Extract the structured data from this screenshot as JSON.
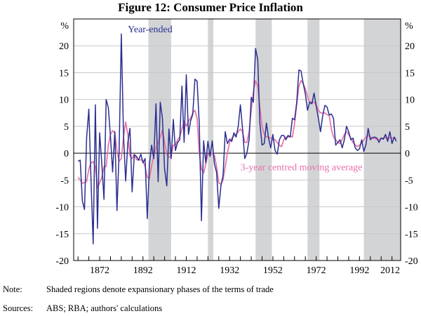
{
  "title": "Figure 12: Consumer Price Inflation",
  "note_label": "Note:",
  "note_text": "Shaded regions denote expansionary phases of the terms of trade",
  "sources_label": "Sources:",
  "sources_text": "ABS; RBA; authors' calculations",
  "chart_data": {
    "type": "line",
    "title": "Figure 12: Consumer Price Inflation",
    "xlabel": "",
    "ylabel": "%",
    "ylabel_right": "%",
    "xlim": [
      1860,
      2011
    ],
    "ylim": [
      -20,
      25
    ],
    "yticks": [
      -20,
      -15,
      -10,
      -5,
      0,
      5,
      10,
      15,
      20
    ],
    "xticks": [
      1872,
      1892,
      1912,
      1932,
      1952,
      1972,
      1992,
      2012
    ],
    "minor_xtick_step": 5,
    "grid": true,
    "shaded_regions": [
      [
        1894.5,
        1905
      ],
      [
        1922,
        1924.5
      ],
      [
        1944,
        1951.5
      ],
      [
        1968,
        1973.5
      ],
      [
        1994,
        2011
      ]
    ],
    "colors": {
      "year_ended": "#2b2f8f",
      "moving_average": "#e870a8",
      "shade": "#d3d4d6",
      "grid": "#c8c8c8"
    },
    "annotations": [
      {
        "text": "Year-ended",
        "series": "year_ended",
        "x": 1885,
        "y": 22.5
      },
      {
        "text": "3-year centred moving average",
        "series": "moving_average",
        "x": 1937,
        "y": -3.2
      }
    ],
    "x": [
      1862,
      1863,
      1864,
      1865,
      1866,
      1867,
      1868,
      1869,
      1870,
      1871,
      1872,
      1873,
      1874,
      1875,
      1876,
      1877,
      1878,
      1879,
      1880,
      1881,
      1882,
      1883,
      1884,
      1885,
      1886,
      1887,
      1888,
      1889,
      1890,
      1891,
      1892,
      1893,
      1894,
      1895,
      1896,
      1897,
      1898,
      1899,
      1900,
      1901,
      1902,
      1903,
      1904,
      1905,
      1906,
      1907,
      1908,
      1909,
      1910,
      1911,
      1912,
      1913,
      1914,
      1915,
      1916,
      1917,
      1918,
      1919,
      1920,
      1921,
      1922,
      1923,
      1924,
      1925,
      1926,
      1927,
      1928,
      1929,
      1930,
      1931,
      1932,
      1933,
      1934,
      1935,
      1936,
      1937,
      1938,
      1939,
      1940,
      1941,
      1942,
      1943,
      1944,
      1945,
      1946,
      1947,
      1948,
      1949,
      1950,
      1951,
      1952,
      1953,
      1954,
      1955,
      1956,
      1957,
      1958,
      1959,
      1960,
      1961,
      1962,
      1963,
      1964,
      1965,
      1966,
      1967,
      1968,
      1969,
      1970,
      1971,
      1972,
      1973,
      1974,
      1975,
      1976,
      1977,
      1978,
      1979,
      1980,
      1981,
      1982,
      1983,
      1984,
      1985,
      1986,
      1987,
      1988,
      1989,
      1990,
      1991,
      1992,
      1993,
      1994,
      1995,
      1996,
      1997,
      1998,
      1999,
      2000,
      2001,
      2002,
      2003,
      2004,
      2005,
      2006,
      2007,
      2008,
      2009,
      2010,
      2011
    ],
    "series": [
      {
        "name": "Year-ended",
        "values": [
          -1.5,
          -1.3,
          -8.8,
          -10.5,
          3.0,
          8.2,
          -5.0,
          -16.9,
          9.0,
          -14.0,
          3.8,
          -2.0,
          -8.6,
          10.0,
          8.5,
          3.0,
          -3.5,
          4.0,
          -10.7,
          0.5,
          22.2,
          3.5,
          -5.2,
          2.0,
          4.6,
          -7.2,
          -0.3,
          -0.6,
          -1.3,
          -0.2,
          -1.8,
          -1.0,
          -12.2,
          -2.0,
          1.5,
          -1.0,
          9.2,
          -5.3,
          9.5,
          6.5,
          -3.0,
          -6.1,
          4.5,
          -1.0,
          6.3,
          0.5,
          2.0,
          2.5,
          12.5,
          2.0,
          14.6,
          3.5,
          6.0,
          7.2,
          13.8,
          13.4,
          5.5,
          -12.6,
          2.3,
          -1.8,
          2.2,
          -0.6,
          2.3,
          -2.0,
          -3.6,
          -10.3,
          -6.0,
          -4.2,
          4.0,
          1.8,
          2.6,
          2.2,
          3.8,
          3.0,
          5.0,
          9.0,
          4.5,
          -1.0,
          0.0,
          2.5,
          10.4,
          9.5,
          19.5,
          17.5,
          5.5,
          1.5,
          1.8,
          5.6,
          2.8,
          1.0,
          3.5,
          0.5,
          -0.2,
          2.5,
          3.3,
          3.3,
          2.5,
          3.3,
          3.0,
          6.5,
          6.2,
          9.5,
          15.5,
          15.3,
          13.0,
          11.0,
          8.0,
          9.5,
          9.2,
          11.2,
          8.8,
          6.5,
          4.0,
          7.0,
          8.9,
          8.6,
          7.1,
          7.3,
          6.5,
          1.5,
          2.0,
          2.5,
          1.0,
          2.5,
          5.0,
          4.0,
          2.5,
          2.8,
          1.0,
          0.5,
          0.8,
          2.5,
          0.3,
          1.6,
          4.6,
          2.5,
          2.9,
          3.0,
          2.8,
          2.0,
          2.8,
          2.6,
          3.5,
          2.2,
          4.0,
          1.8,
          3.0,
          2.2
        ],
        "color": "#2b2f8f"
      },
      {
        "name": "3-year centred moving average",
        "values": [
          -4.5,
          -5.0,
          -5.6,
          -5.5,
          -5.2,
          -3.0,
          -1.8,
          -1.6,
          -2.5,
          -6.5,
          -5.5,
          -4.5,
          -2.5,
          -2.5,
          1.5,
          3.5,
          4.2,
          3.8,
          0.5,
          -1.5,
          -1.0,
          3.0,
          5.8,
          3.5,
          -0.5,
          -1.0,
          -0.2,
          -1.2,
          -1.3,
          -1.2,
          -1.5,
          -2.5,
          -4.5,
          -4.8,
          -2.3,
          -0.5,
          1.0,
          2.0,
          3.0,
          4.2,
          2.0,
          -0.2,
          -0.8,
          -0.5,
          1.5,
          1.5,
          2.5,
          3.0,
          4.5,
          6.0,
          5.0,
          6.0,
          6.5,
          7.5,
          8.0,
          6.5,
          0.0,
          -3.0,
          -3.7,
          -2.0,
          -0.2,
          -0.3,
          0.0,
          -0.4,
          -2.5,
          -5.5,
          -5.8,
          -5.0,
          -2.5,
          0.0,
          2.0,
          2.8,
          3.2,
          3.5,
          4.0,
          4.5,
          4.0,
          2.0,
          2.0,
          4.0,
          8.0,
          11.5,
          13.5,
          12.5,
          8.5,
          5.0,
          3.5,
          3.0,
          3.0,
          2.8,
          2.5,
          2.5,
          2.0,
          1.5,
          1.2,
          2.5,
          3.0,
          3.0,
          3.2,
          3.0,
          5.5,
          9.0,
          12.5,
          13.5,
          13.0,
          12.0,
          10.5,
          9.5,
          9.5,
          9.5,
          9.0,
          8.0,
          7.5,
          7.5,
          7.5,
          7.2,
          7.0,
          4.5,
          3.0,
          2.5,
          2.0,
          1.8,
          2.5,
          3.5,
          4.0,
          3.5,
          2.8,
          2.0,
          1.5,
          1.2,
          1.5,
          1.8,
          2.5,
          3.0,
          3.3,
          3.0,
          2.8,
          2.7,
          2.6,
          2.5,
          2.8,
          2.8,
          2.9,
          2.8,
          2.9,
          2.8,
          2.9,
          2.7
        ],
        "color": "#e870a8"
      }
    ]
  }
}
